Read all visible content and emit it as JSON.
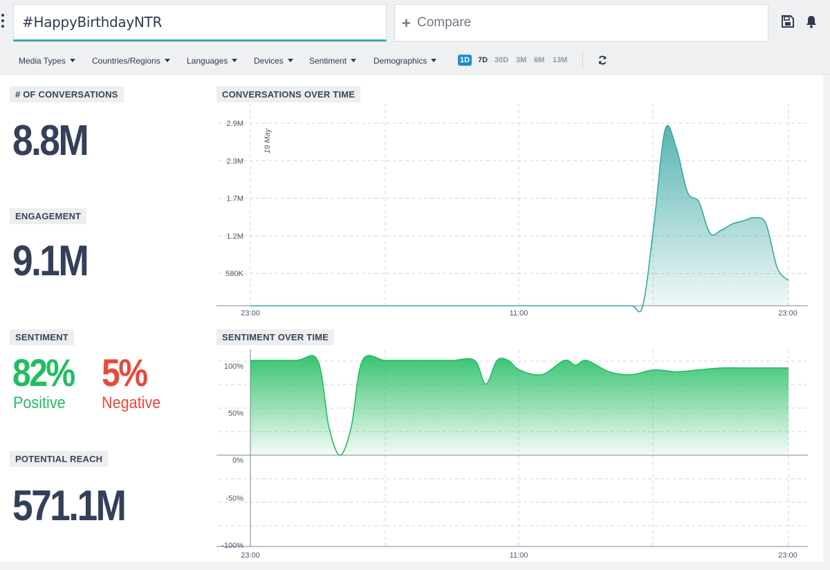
{
  "search": {
    "query": "#HappyBirthdayNTR",
    "compare_label": "Compare"
  },
  "filters": [
    "Media Types",
    "Countries/Regions",
    "Languages",
    "Devices",
    "Sentiment",
    "Demographics"
  ],
  "ranges": [
    "1D",
    "7D",
    "30D",
    "3M",
    "6M",
    "13M"
  ],
  "active_range": "1D",
  "metrics": {
    "conversations": {
      "label": "# OF CONVERSATIONS",
      "value": "8.8M"
    },
    "engagement": {
      "label": "ENGAGEMENT",
      "value": "9.1M"
    },
    "sentiment": {
      "label": "SENTIMENT",
      "positive_value": "82%",
      "positive_label": "Positive",
      "negative_value": "5%",
      "negative_label": "Negative"
    },
    "reach": {
      "label": "POTENTIAL REACH",
      "value": "571.1M"
    }
  },
  "colors": {
    "accent": "#3aa7a3",
    "positive": "#22bd62",
    "negative": "#e54a3c",
    "range_active": "#1f8ccf",
    "text": "#2f3a4c"
  },
  "chart_data": [
    {
      "type": "area",
      "title": "CONVERSATIONS OVER TIME",
      "x_ticks": [
        "23:00",
        "11:00",
        "23:00"
      ],
      "y_ticks": [
        "580K",
        "1.2M",
        "1.7M",
        "2.3M",
        "2.9M"
      ],
      "annotation": "19 May",
      "x": [
        0,
        1,
        2,
        3,
        4,
        5,
        6,
        7,
        8,
        9,
        10,
        11,
        12,
        13,
        14,
        15,
        16,
        17,
        17.5,
        18,
        18.5,
        19,
        19.5,
        20,
        20.5,
        21,
        21.5,
        22,
        22.5,
        23,
        23.5,
        24
      ],
      "values": [
        0,
        0,
        0,
        0,
        0,
        0,
        0,
        0,
        0,
        0,
        0,
        0,
        0,
        0,
        0,
        0,
        0,
        0,
        0,
        1.3,
        2.8,
        2.5,
        1.8,
        1.65,
        1.15,
        1.2,
        1.3,
        1.35,
        1.4,
        1.3,
        0.6,
        0.4
      ],
      "ylim": [
        0,
        3.0
      ],
      "grid": true
    },
    {
      "type": "area",
      "title": "SENTIMENT OVER TIME",
      "x_ticks": [
        "23:00",
        "11:00",
        "23:00"
      ],
      "y_ticks": [
        "100%",
        "50%",
        "0%",
        "-50%",
        "-100%"
      ],
      "x": [
        0,
        2,
        3,
        3.5,
        4,
        4.5,
        5,
        6,
        7,
        8,
        9,
        10,
        10.5,
        11,
        11.5,
        12,
        13,
        14,
        14.5,
        15,
        16,
        17,
        18,
        19,
        20,
        21,
        22,
        23,
        24
      ],
      "values": [
        100,
        100,
        100,
        30,
        0,
        30,
        100,
        100,
        100,
        100,
        100,
        100,
        75,
        100,
        100,
        90,
        85,
        100,
        95,
        100,
        88,
        85,
        90,
        88,
        90,
        92,
        92,
        92,
        92
      ],
      "ylim": [
        -100,
        100
      ],
      "grid": true
    }
  ]
}
